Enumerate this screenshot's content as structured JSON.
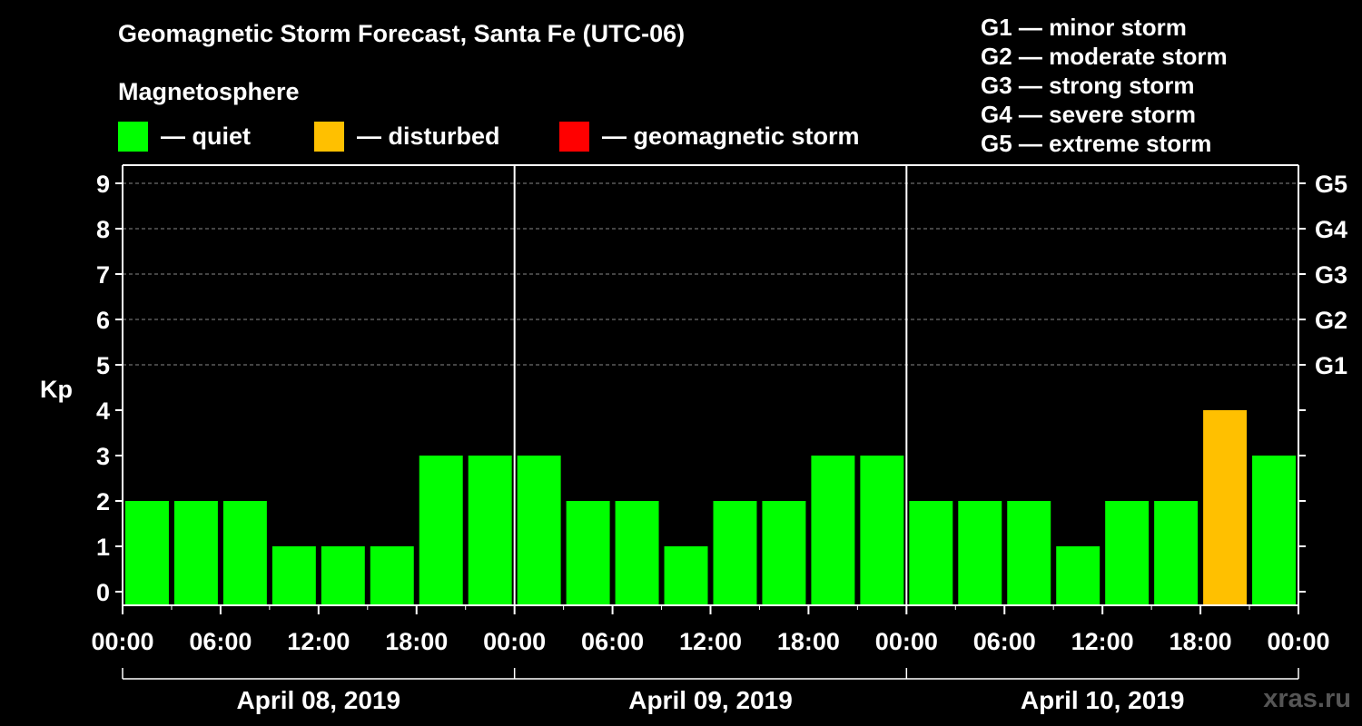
{
  "title": "Geomagnetic Storm Forecast, Santa Fe (UTC-06)",
  "subtitle": "Magnetosphere",
  "legend": [
    {
      "label": "— quiet",
      "color": "#00ff00",
      "name": "legend-quiet"
    },
    {
      "label": "— disturbed",
      "color": "#ffc000",
      "name": "legend-disturbed"
    },
    {
      "label": "— geomagnetic storm",
      "color": "#ff0000",
      "name": "legend-storm"
    }
  ],
  "g_scale": [
    "G1 — minor storm",
    "G2 — moderate storm",
    "G3 — strong storm",
    "G4 — severe storm",
    "G5 — extreme storm"
  ],
  "watermark": "xras.ru",
  "chart_data": {
    "type": "bar",
    "ylabel": "Kp",
    "ylim": [
      0,
      9
    ],
    "y_ticks": [
      0,
      1,
      2,
      3,
      4,
      5,
      6,
      7,
      8,
      9
    ],
    "right_ticks": [
      {
        "kp": 5,
        "label": "G1"
      },
      {
        "kp": 6,
        "label": "G2"
      },
      {
        "kp": 7,
        "label": "G3"
      },
      {
        "kp": 8,
        "label": "G4"
      },
      {
        "kp": 9,
        "label": "G5"
      }
    ],
    "x_tick_labels": [
      "00:00",
      "06:00",
      "12:00",
      "18:00",
      "00:00",
      "06:00",
      "12:00",
      "18:00",
      "00:00",
      "06:00",
      "12:00",
      "18:00",
      "00:00"
    ],
    "days": [
      "April 08, 2019",
      "April 09, 2019",
      "April 10, 2019"
    ],
    "bars_per_day": 8,
    "values": [
      2,
      2,
      2,
      1,
      1,
      1,
      3,
      3,
      3,
      2,
      2,
      1,
      2,
      2,
      3,
      3,
      2,
      2,
      2,
      1,
      2,
      2,
      4,
      3
    ],
    "colors": {
      "quiet": "#00ff00",
      "disturbed": "#ffc000",
      "storm": "#ff0000"
    },
    "thresholds": {
      "disturbed": 4,
      "storm": 5
    },
    "gridlines": [
      5,
      6,
      7,
      8,
      9
    ]
  }
}
